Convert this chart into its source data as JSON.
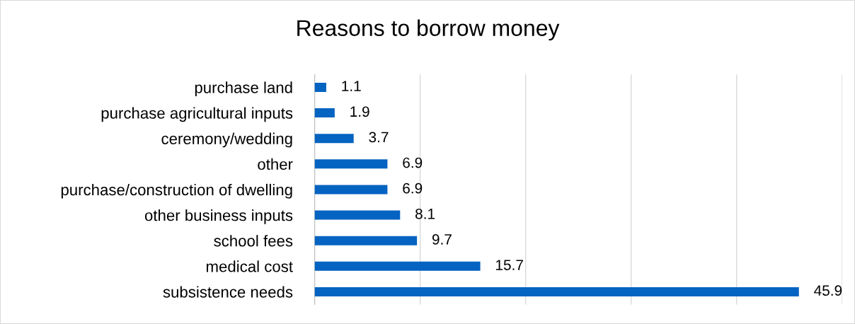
{
  "chart_data": {
    "type": "bar",
    "orientation": "horizontal",
    "title": "Reasons to borrow money",
    "categories": [
      "purchase land",
      "purchase agricultural inputs",
      "ceremony/wedding",
      "other",
      "purchase/construction of dwelling",
      "other business inputs",
      "school fees",
      "medical cost",
      "subsistence needs"
    ],
    "values": [
      1.1,
      1.9,
      3.7,
      6.9,
      6.9,
      8.1,
      9.7,
      15.7,
      45.9
    ],
    "color": "#0563c1",
    "xlim": [
      0,
      50
    ],
    "xticks": [
      {
        "value": 0,
        "label": null
      },
      {
        "value": 10,
        "label": null
      },
      {
        "value": 20,
        "label": null
      },
      {
        "value": 30,
        "label": null
      },
      {
        "value": 40,
        "label": null
      },
      {
        "value": 50,
        "label": null
      }
    ],
    "tick_labels": "y",
    "grid": "x",
    "data_labels": true,
    "legend": false
  }
}
